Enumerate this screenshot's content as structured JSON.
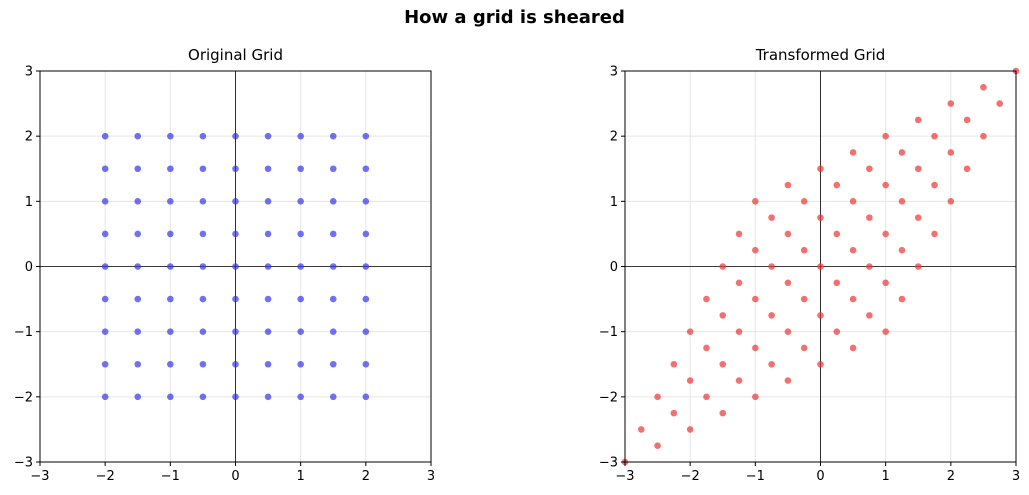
{
  "title": "How a grid is sheared",
  "chart_data": [
    {
      "type": "scatter",
      "title": "Original Grid",
      "xlim": [
        -3,
        3
      ],
      "ylim": [
        -3,
        3
      ],
      "xticks": [
        "−3",
        "−2",
        "−1",
        "0",
        "1",
        "2",
        "3"
      ],
      "yticks": [
        "−3",
        "−2",
        "−1",
        "0",
        "1",
        "2",
        "3"
      ],
      "grid": true,
      "color": "#3333ee",
      "x": [
        -2,
        -2,
        -2,
        -2,
        -2,
        -2,
        -2,
        -2,
        -2,
        -1.5,
        -1.5,
        -1.5,
        -1.5,
        -1.5,
        -1.5,
        -1.5,
        -1.5,
        -1.5,
        -1,
        -1,
        -1,
        -1,
        -1,
        -1,
        -1,
        -1,
        -1,
        -0.5,
        -0.5,
        -0.5,
        -0.5,
        -0.5,
        -0.5,
        -0.5,
        -0.5,
        -0.5,
        0,
        0,
        0,
        0,
        0,
        0,
        0,
        0,
        0,
        0.5,
        0.5,
        0.5,
        0.5,
        0.5,
        0.5,
        0.5,
        0.5,
        0.5,
        1,
        1,
        1,
        1,
        1,
        1,
        1,
        1,
        1,
        1.5,
        1.5,
        1.5,
        1.5,
        1.5,
        1.5,
        1.5,
        1.5,
        1.5,
        2,
        2,
        2,
        2,
        2,
        2,
        2,
        2,
        2
      ],
      "y": [
        -2,
        -1.5,
        -1,
        -0.5,
        0,
        0.5,
        1,
        1.5,
        2,
        -2,
        -1.5,
        -1,
        -0.5,
        0,
        0.5,
        1,
        1.5,
        2,
        -2,
        -1.5,
        -1,
        -0.5,
        0,
        0.5,
        1,
        1.5,
        2,
        -2,
        -1.5,
        -1,
        -0.5,
        0,
        0.5,
        1,
        1.5,
        2,
        -2,
        -1.5,
        -1,
        -0.5,
        0,
        0.5,
        1,
        1.5,
        2,
        -2,
        -1.5,
        -1,
        -0.5,
        0,
        0.5,
        1,
        1.5,
        2,
        -2,
        -1.5,
        -1,
        -0.5,
        0,
        0.5,
        1,
        1.5,
        2,
        -2,
        -1.5,
        -1,
        -0.5,
        0,
        0.5,
        1,
        1.5,
        2,
        -2,
        -1.5,
        -1,
        -0.5,
        0,
        0.5,
        1,
        1.5,
        2
      ]
    },
    {
      "type": "scatter",
      "title": "Transformed Grid",
      "xlim": [
        -3,
        3
      ],
      "ylim": [
        -3,
        3
      ],
      "xticks": [
        "−3",
        "−2",
        "−1",
        "0",
        "1",
        "2",
        "3"
      ],
      "yticks": [
        "−3",
        "−2",
        "−1",
        "0",
        "1",
        "2",
        "3"
      ],
      "grid": true,
      "color": "#ee3333",
      "x": [
        -3,
        -2.75,
        -2.5,
        -2.25,
        -2,
        -1.75,
        -1.5,
        -1.25,
        -1,
        -2.5,
        -2.25,
        -2,
        -1.75,
        -1.5,
        -1.25,
        -1,
        -0.75,
        -0.5,
        -2,
        -1.75,
        -1.5,
        -1.25,
        -1,
        -0.75,
        -0.5,
        -0.25,
        0,
        -1.5,
        -1.25,
        -1,
        -0.75,
        -0.5,
        -0.25,
        0,
        0.25,
        0.5,
        -1,
        -0.75,
        -0.5,
        -0.25,
        0,
        0.25,
        0.5,
        0.75,
        1,
        -0.5,
        -0.25,
        0,
        0.25,
        0.5,
        0.75,
        1,
        1.25,
        1.5,
        0,
        0.25,
        0.5,
        0.75,
        1,
        1.25,
        1.5,
        1.75,
        2,
        0.5,
        0.75,
        1,
        1.25,
        1.5,
        1.75,
        2,
        2.25,
        2.5,
        1,
        1.25,
        1.5,
        1.75,
        2,
        2.25,
        2.5,
        2.75,
        3
      ],
      "y": [
        -3,
        -2.5,
        -2,
        -1.5,
        -1,
        -0.5,
        0,
        0.5,
        1,
        -2.75,
        -2.25,
        -1.75,
        -1.25,
        -0.75,
        -0.25,
        0.25,
        0.75,
        1.25,
        -2.5,
        -2,
        -1.5,
        -1,
        -0.5,
        0,
        0.5,
        1,
        1.5,
        -2.25,
        -1.75,
        -1.25,
        -0.75,
        -0.25,
        0.25,
        0.75,
        1.25,
        1.75,
        -2,
        -1.5,
        -1,
        -0.5,
        0,
        0.5,
        1,
        1.5,
        2,
        -1.75,
        -1.25,
        -0.75,
        -0.25,
        0.25,
        0.75,
        1.25,
        1.75,
        2.25,
        -1.5,
        -1,
        -0.5,
        0,
        0.5,
        1,
        1.5,
        2,
        2.5,
        -1.25,
        -0.75,
        -0.25,
        0.25,
        0.75,
        1.25,
        1.75,
        2.25,
        2.75,
        -1,
        -0.5,
        0,
        0.5,
        1,
        1.5,
        2,
        2.5,
        3
      ]
    }
  ]
}
